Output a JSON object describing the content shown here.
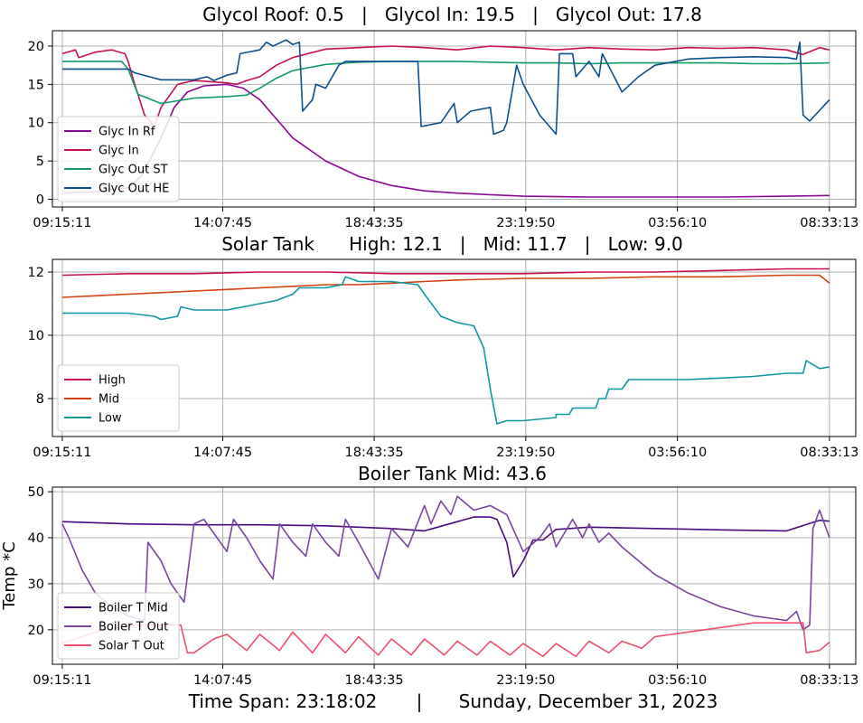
{
  "footer": {
    "time_span": "Time Span: 23:18:02",
    "separator": "|",
    "date": "Sunday, December 31, 2023"
  },
  "chart_data": [
    {
      "type": "line",
      "title": "Glycol Roof: 0.5   |   Glycol In: 19.5   |   Glycol Out: 17.8",
      "ylabel": "",
      "xlim": [
        -0.3,
        24.1
      ],
      "ylim": [
        -1.0,
        22.0
      ],
      "xticks": [
        {
          "v": 0,
          "label": "09:15:11"
        },
        {
          "v": 4.874,
          "label": "14:07:45"
        },
        {
          "v": 9.473,
          "label": "18:43:35"
        },
        {
          "v": 14.077,
          "label": "23:19:50"
        },
        {
          "v": 18.683,
          "label": "03:56:10"
        },
        {
          "v": 23.3,
          "label": "08:33:13"
        }
      ],
      "yticks": [
        0,
        5,
        10,
        15,
        20
      ],
      "grid": true,
      "legend_position": "lower-left",
      "series": [
        {
          "name": "Glyc In Rf",
          "color": "#8b0a94",
          "x": [
            0,
            1,
            2,
            2.4,
            3,
            3.4,
            3.8,
            4.3,
            5,
            5.5,
            6,
            6.5,
            7,
            8,
            9,
            10,
            11,
            12,
            13,
            14,
            16,
            18,
            20,
            22,
            23.3
          ],
          "y": [
            0.8,
            1,
            1.5,
            3,
            8,
            12,
            14,
            14.8,
            15,
            14.5,
            13,
            10.5,
            8,
            5,
            3,
            1.8,
            1.1,
            0.8,
            0.6,
            0.4,
            0.3,
            0.3,
            0.3,
            0.4,
            0.5
          ]
        },
        {
          "name": "Glyc In",
          "color": "#c8104f",
          "x": [
            0,
            0.4,
            0.5,
            1,
            1.5,
            1.9,
            2,
            2.2,
            2.5,
            2.8,
            3,
            3.5,
            4,
            5,
            5.3,
            5.6,
            6,
            6.5,
            7,
            8,
            9,
            10,
            11,
            12,
            13,
            14,
            15,
            16,
            17,
            18,
            19,
            20,
            21,
            22,
            22.5,
            23,
            23.3
          ],
          "y": [
            19,
            19.5,
            18.5,
            19.2,
            19.5,
            19,
            18,
            15,
            11,
            9.5,
            12,
            15,
            15.5,
            15.2,
            15,
            15.5,
            16,
            17.5,
            18.5,
            19.6,
            19.8,
            20,
            19.8,
            19.5,
            20,
            19.8,
            19.5,
            19.8,
            19.6,
            19.5,
            19.8,
            19.7,
            19.8,
            19.5,
            18.9,
            19.8,
            19.5
          ]
        },
        {
          "name": "Glyc Out ST",
          "color": "#109865",
          "x": [
            0,
            1,
            1.8,
            2,
            2.3,
            3,
            4,
            5,
            5.6,
            6,
            6.5,
            7,
            8,
            9,
            10,
            11,
            12,
            13,
            14,
            15,
            16,
            17,
            18,
            19,
            20,
            21,
            22,
            23.3
          ],
          "y": [
            18,
            18,
            18,
            17,
            13.7,
            12.5,
            13.2,
            13.4,
            13.6,
            14.5,
            15.8,
            16.8,
            17.6,
            17.9,
            18,
            18,
            18,
            17.9,
            17.8,
            17.8,
            17.7,
            17.8,
            17.8,
            17.8,
            17.8,
            17.7,
            17.7,
            17.8
          ]
        },
        {
          "name": "Glyc Out HE",
          "color": "#0d4f8c",
          "x": [
            0,
            1,
            2,
            2.2,
            3,
            4,
            4.4,
            4.6,
            5,
            5.3,
            5.4,
            6,
            6.2,
            6.4,
            6.8,
            7,
            7.2,
            7.3,
            7.6,
            7.7,
            8,
            8.4,
            8.6,
            10.8,
            10.9,
            11.5,
            11.9,
            12,
            12.4,
            13,
            13.1,
            13.4,
            13.5,
            13.8,
            14,
            14.5,
            15,
            15.1,
            15.5,
            15.6,
            16,
            16.3,
            16.4,
            17,
            17.5,
            18,
            19,
            20,
            21,
            22,
            22.3,
            22.4,
            22.5,
            22.7,
            23.3
          ],
          "y": [
            17,
            17,
            17,
            16.5,
            15.6,
            15.6,
            16,
            15.5,
            16.2,
            16.5,
            19,
            19.5,
            20.5,
            20,
            20.8,
            20.2,
            20.5,
            11.5,
            13,
            15,
            14.5,
            17.5,
            18,
            18,
            9.5,
            10,
            12.5,
            10,
            11.5,
            12,
            8.5,
            9,
            10,
            17.5,
            15,
            11,
            8.5,
            19,
            19,
            16,
            18,
            16,
            19,
            14,
            16,
            17.5,
            18.3,
            18.5,
            18.6,
            18.5,
            18.3,
            20.5,
            11,
            10.2,
            13
          ]
        }
      ]
    },
    {
      "type": "line",
      "title": "Solar Tank      High: 12.1   |   Mid: 11.7   |   Low: 9.0",
      "ylabel": "",
      "xlim": [
        -0.3,
        24.1
      ],
      "ylim": [
        6.8,
        12.4
      ],
      "xticks": [
        {
          "v": 0,
          "label": "09:15:11"
        },
        {
          "v": 4.874,
          "label": "14:07:45"
        },
        {
          "v": 9.473,
          "label": "18:43:35"
        },
        {
          "v": 14.077,
          "label": "23:19:50"
        },
        {
          "v": 18.683,
          "label": "03:56:10"
        },
        {
          "v": 23.3,
          "label": "08:33:13"
        }
      ],
      "yticks": [
        8,
        10,
        12
      ],
      "grid": true,
      "legend_position": "lower-left",
      "series": [
        {
          "name": "High",
          "color": "#c8104f",
          "x": [
            0,
            2,
            4,
            6,
            8,
            10,
            12,
            14,
            16,
            18,
            20,
            22,
            23.3
          ],
          "y": [
            11.9,
            11.95,
            11.95,
            12,
            12,
            11.95,
            11.95,
            11.95,
            12,
            12,
            12.05,
            12.1,
            12.1
          ]
        },
        {
          "name": "Mid",
          "color": "#d44010",
          "x": [
            0,
            1,
            2,
            3,
            4,
            5,
            6,
            7,
            8,
            9,
            10,
            11,
            12,
            14,
            16,
            18,
            20,
            22,
            23,
            23.3
          ],
          "y": [
            11.2,
            11.25,
            11.3,
            11.35,
            11.4,
            11.45,
            11.5,
            11.55,
            11.6,
            11.6,
            11.65,
            11.7,
            11.75,
            11.8,
            11.8,
            11.85,
            11.85,
            11.9,
            11.9,
            11.65
          ]
        },
        {
          "name": "Low",
          "color": "#0d98a3",
          "x": [
            0,
            2,
            2.8,
            3,
            3.5,
            3.6,
            4,
            5,
            6,
            6.5,
            7,
            7.2,
            8,
            8.5,
            8.6,
            9,
            10,
            10.8,
            11,
            11.5,
            12,
            12.5,
            12.8,
            13,
            13.2,
            13.5,
            14,
            15,
            15,
            15.4,
            15.5,
            16.2,
            16.3,
            16.5,
            16.6,
            17,
            17.2,
            18,
            19,
            20,
            21,
            22,
            22.5,
            22.6,
            23,
            23.3
          ],
          "y": [
            10.7,
            10.7,
            10.6,
            10.5,
            10.6,
            10.9,
            10.8,
            10.8,
            11,
            11.1,
            11.3,
            11.5,
            11.5,
            11.6,
            11.85,
            11.7,
            11.7,
            11.6,
            11.3,
            10.6,
            10.4,
            10.3,
            9.6,
            8.3,
            7.2,
            7.3,
            7.3,
            7.4,
            7.5,
            7.5,
            7.7,
            7.7,
            8,
            8,
            8.3,
            8.3,
            8.6,
            8.6,
            8.6,
            8.65,
            8.7,
            8.8,
            8.8,
            9.2,
            8.95,
            9.0
          ]
        }
      ]
    },
    {
      "type": "line",
      "title": "Boiler Tank Mid: 43.6",
      "ylabel": "Temp *C",
      "xlim": [
        -0.3,
        24.1
      ],
      "ylim": [
        12.5,
        51.0
      ],
      "xticks": [
        {
          "v": 0,
          "label": "09:15:11"
        },
        {
          "v": 4.874,
          "label": "14:07:45"
        },
        {
          "v": 9.473,
          "label": "18:43:35"
        },
        {
          "v": 14.077,
          "label": "23:19:50"
        },
        {
          "v": 18.683,
          "label": "03:56:10"
        },
        {
          "v": 23.3,
          "label": "08:33:13"
        }
      ],
      "yticks": [
        20,
        30,
        40,
        50
      ],
      "grid": true,
      "legend_position": "lower-left",
      "series": [
        {
          "name": "Boiler T Mid",
          "color": "#4a0a80",
          "x": [
            0,
            2,
            4,
            6,
            8,
            10,
            11,
            11.5,
            12,
            12.5,
            13,
            13.2,
            13.5,
            13.7,
            14,
            14.3,
            14.6,
            15,
            16,
            18,
            20,
            22,
            23,
            23.3
          ],
          "y": [
            43.5,
            43,
            42.8,
            42.8,
            42.6,
            42,
            41.5,
            42.5,
            43.5,
            44.5,
            44.5,
            44,
            39,
            31.5,
            35,
            39.5,
            39.5,
            41.8,
            42.3,
            42,
            41.7,
            41.5,
            43.8,
            43.6
          ]
        },
        {
          "name": "Boiler T Out",
          "color": "#7a44a0",
          "x": [
            0,
            0.2,
            0.6,
            1,
            1.5,
            2,
            2.5,
            2.6,
            3,
            3.3,
            3.7,
            4,
            4.3,
            4.6,
            5,
            5.2,
            5.6,
            6,
            6.4,
            6.6,
            7,
            7.4,
            7.6,
            8,
            8.4,
            8.6,
            9,
            9.3,
            9.6,
            10,
            10.5,
            11,
            11.2,
            11.5,
            11.8,
            12,
            12.5,
            13,
            13.5,
            14,
            14.5,
            14.8,
            15,
            15.5,
            15.8,
            16,
            16.3,
            16.6,
            17,
            18,
            19,
            20,
            21,
            22,
            22.3,
            22.5,
            22.7,
            22.8,
            23,
            23.3
          ],
          "y": [
            43,
            40,
            33,
            28,
            25,
            23,
            22,
            39,
            35,
            30,
            26,
            43,
            44,
            41,
            37,
            44,
            40,
            35,
            31,
            43,
            39,
            36,
            43,
            39,
            36,
            44,
            39,
            35,
            31,
            42,
            38,
            47,
            43,
            48,
            45,
            49,
            46,
            47,
            45,
            37,
            40,
            43,
            38,
            44,
            40,
            43,
            39,
            41,
            38,
            32,
            28,
            25,
            23,
            22,
            24,
            20,
            21,
            42,
            46,
            40
          ]
        },
        {
          "name": "Solar T Out",
          "color": "#ef4f6a",
          "x": [
            0,
            1,
            2,
            2.5,
            3,
            3.6,
            3.8,
            4,
            4.6,
            5,
            5.6,
            6,
            6.6,
            7,
            7.6,
            8,
            8.6,
            9,
            9.6,
            10,
            10.6,
            11,
            11.6,
            12,
            12.6,
            13,
            13.6,
            14,
            14.6,
            15,
            15.6,
            16,
            16.6,
            17,
            17.6,
            18,
            19,
            20,
            21,
            22,
            22.5,
            22.6,
            23,
            23.3
          ],
          "y": [
            17,
            19.5,
            21,
            21,
            21,
            21,
            15,
            15,
            18,
            19,
            15.5,
            19,
            15.5,
            19.5,
            15,
            19,
            15,
            18.5,
            14.5,
            18,
            14.5,
            18,
            14.5,
            17.5,
            14.5,
            17.5,
            14.5,
            17,
            14.2,
            17,
            14.2,
            17.5,
            15,
            17.5,
            16,
            18.5,
            19.5,
            20.5,
            21.5,
            21.5,
            21.5,
            15,
            15.5,
            17.3
          ]
        }
      ]
    }
  ]
}
